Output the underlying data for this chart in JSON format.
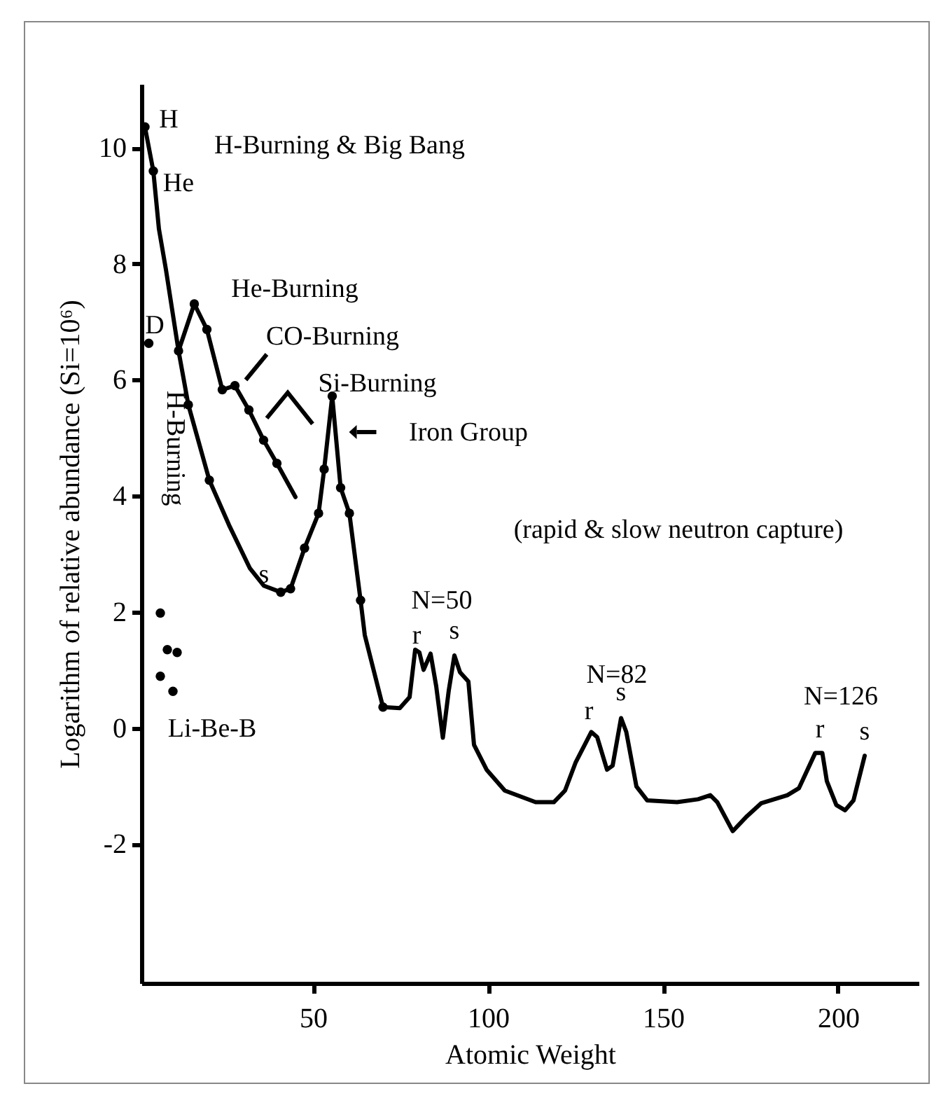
{
  "chart_data": {
    "type": "line",
    "xlabel": "Atomic Weight",
    "ylabel": "Logarithm of relative abundance (Si=10⁶)",
    "xlim": [
      1,
      223
    ],
    "ylim": [
      -4.4,
      11.1
    ],
    "xticks": [
      50,
      100,
      150,
      200
    ],
    "yticks": [
      -2,
      0,
      2,
      4,
      6,
      8,
      10
    ],
    "grid": false,
    "marker": "none",
    "series": [
      {
        "color": "#000000",
        "x": [
          2,
          4.4,
          6,
          8,
          11.6,
          14.4,
          20.4,
          26,
          32,
          36,
          40.8,
          43.6,
          47.6,
          51.6,
          53.2,
          55.5,
          57.9,
          60.4,
          63.6,
          64.8,
          70,
          74.8,
          77.6,
          79.2,
          80.4,
          81.6,
          83.6,
          85.2,
          87.1,
          88.8,
          90.4,
          92,
          94.4,
          96,
          99.6,
          104.8,
          113.6,
          118.8,
          122,
          125,
          129.5,
          131.2,
          134,
          135.6,
          138,
          139.5,
          142.4,
          145.5,
          154,
          160,
          163.5,
          165.5,
          169.9,
          174,
          178,
          185.5,
          188.8,
          193.5,
          195.5,
          196.8,
          199.5,
          202,
          204.4,
          207.6
        ],
        "values": [
          10.36,
          9.6,
          8.6,
          7.9,
          6.5,
          5.57,
          4.27,
          3.5,
          2.75,
          2.45,
          2.34,
          2.4,
          3.1,
          3.7,
          4.46,
          5.72,
          4.14,
          3.7,
          2.2,
          1.6,
          0.36,
          0.34,
          0.53,
          1.35,
          1.3,
          1.0,
          1.28,
          0.72,
          -0.17,
          0.65,
          1.25,
          0.96,
          0.8,
          -0.29,
          -0.72,
          -1.08,
          -1.28,
          -1.28,
          -1.08,
          -0.6,
          -0.07,
          -0.16,
          -0.72,
          -0.65,
          0.17,
          -0.07,
          -1.01,
          -1.25,
          -1.28,
          -1.23,
          -1.16,
          -1.28,
          -1.78,
          -1.52,
          -1.3,
          -1.16,
          -1.04,
          -0.43,
          -0.43,
          -0.92,
          -1.33,
          -1.42,
          -1.25,
          -0.48
        ]
      },
      {
        "color": "#000000",
        "x": [
          11.6,
          16.1,
          19.7,
          24.1,
          27.7,
          31.7,
          35.9,
          39.7,
          45
        ],
        "values": [
          6.5,
          7.31,
          6.87,
          5.83,
          5.9,
          5.48,
          4.96,
          4.56,
          3.98
        ]
      },
      {
        "type": "scatter",
        "marker": "circle",
        "color": "#000000",
        "x": [
          2,
          4.4,
          3.1,
          11.6,
          14.4,
          20.4,
          40.8,
          43.6,
          47.6,
          51.6,
          53.2,
          55.5,
          57.9,
          60.4,
          63.6,
          70,
          16.1,
          19.7,
          24.1,
          27.7,
          31.7,
          35.9,
          39.7,
          6.4,
          8.4,
          11.2,
          6.4,
          10
        ],
        "values": [
          10.36,
          9.6,
          6.63,
          6.5,
          5.57,
          4.27,
          2.34,
          2.4,
          3.1,
          3.7,
          4.46,
          5.72,
          4.14,
          3.7,
          2.2,
          0.36,
          7.31,
          6.87,
          5.83,
          5.9,
          5.48,
          4.96,
          4.56,
          1.98,
          1.35,
          1.3,
          0.89,
          0.63
        ]
      }
    ],
    "annotations": [
      "H",
      "H-Burning & Big Bang",
      "He",
      "D",
      "He-Burning",
      "CO-Burning",
      "Si-Burning",
      "Iron Group",
      "H-Burning",
      "s",
      "(rapid & slow neutron capture)",
      "N=50",
      "r",
      "s",
      "N=82",
      "r",
      "s",
      "N=126",
      "r",
      "s",
      "Li-Be-B"
    ]
  }
}
